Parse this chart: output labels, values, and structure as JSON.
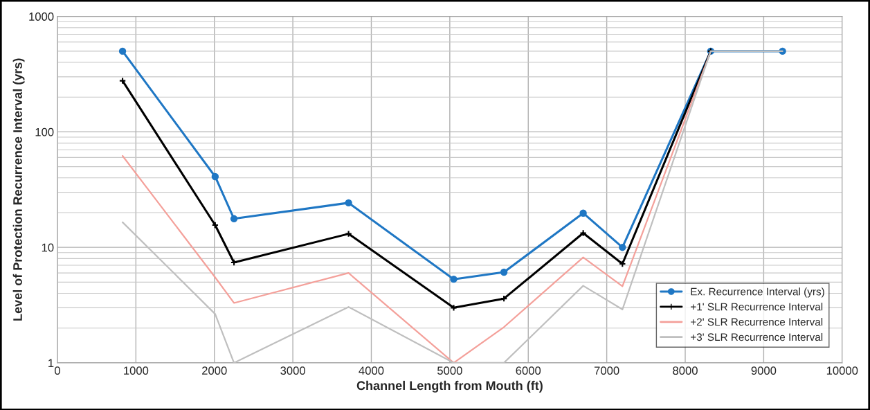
{
  "chart_data": {
    "type": "line",
    "xlabel": "Channel Length from Mouth (ft)",
    "ylabel": "Level of Protection Recurrence Interval (yrs)",
    "x": [
      830,
      2010,
      2250,
      3710,
      5050,
      5690,
      6700,
      7200,
      8325,
      9240
    ],
    "series": [
      {
        "name": "Ex. Recurrence Interval (yrs)",
        "color": "#1f77c4",
        "marker": "circle",
        "values": [
          500,
          41,
          17.7,
          24.3,
          5.3,
          6.1,
          19.8,
          10,
          500,
          500
        ]
      },
      {
        "name": "+1' SLR Recurrence Interval",
        "color": "#000000",
        "marker": "cross",
        "values": [
          277,
          15.6,
          7.4,
          13.1,
          3.0,
          3.6,
          13.3,
          7.2,
          500,
          null
        ]
      },
      {
        "name": "+2' SLR Recurrence Interval",
        "color": "#f4a09a",
        "marker": "none",
        "values": [
          62,
          5.5,
          3.3,
          6.0,
          1,
          2.04,
          8.2,
          4.6,
          500,
          null
        ]
      },
      {
        "name": "+3' SLR Recurrence Interval",
        "color": "#bfbfbf",
        "marker": "none",
        "values": [
          16.5,
          2.65,
          1,
          3.05,
          1,
          1,
          4.65,
          2.9,
          500,
          500
        ]
      }
    ],
    "log": "y",
    "xlim": [
      0,
      10000
    ],
    "xticks": [
      0,
      1000,
      2000,
      3000,
      4000,
      5000,
      6000,
      7000,
      8000,
      9000,
      10000
    ],
    "ylim": [
      1,
      1000
    ],
    "yticks": [
      1,
      10,
      100,
      1000
    ],
    "grid": true,
    "legend": "bottom right"
  }
}
